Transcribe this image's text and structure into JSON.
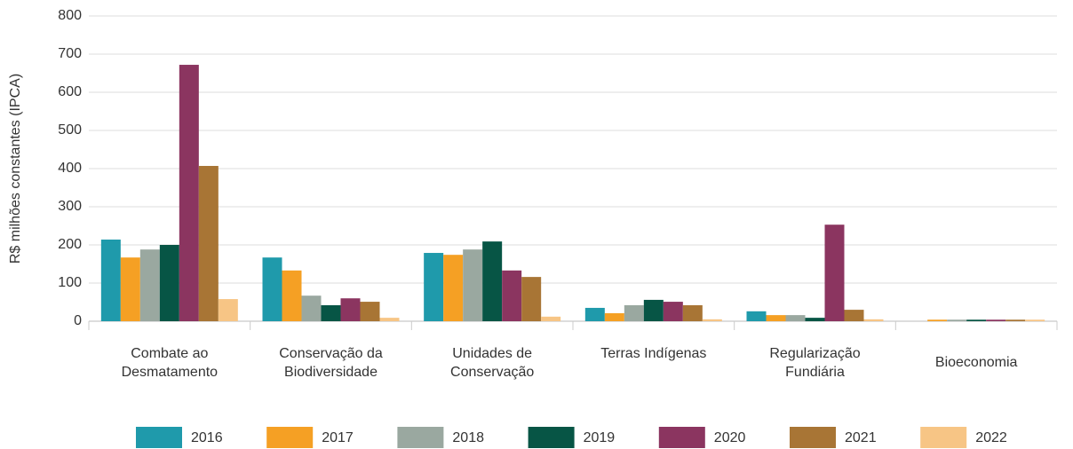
{
  "chart_data": {
    "type": "bar",
    "y_label": "R$ milhões constantes (IPCA)",
    "categories": [
      "Combate ao Desmatamento",
      "Conservação da Biodiversidade",
      "Unidades de Conservação",
      "Terras Indígenas",
      "Regularização Fundiária",
      "Bioeconomia"
    ],
    "series": [
      {
        "name": "2016",
        "color": "#1f9aab",
        "values": [
          214,
          167,
          179,
          35,
          26,
          0
        ]
      },
      {
        "name": "2017",
        "color": "#f5a024",
        "values": [
          167,
          133,
          174,
          21,
          16,
          4
        ]
      },
      {
        "name": "2018",
        "color": "#9aa8a0",
        "values": [
          188,
          67,
          188,
          42,
          16,
          4
        ]
      },
      {
        "name": "2019",
        "color": "#075545",
        "values": [
          200,
          42,
          209,
          56,
          9,
          4
        ]
      },
      {
        "name": "2020",
        "color": "#8b3560",
        "values": [
          672,
          60,
          133,
          51,
          253,
          4
        ]
      },
      {
        "name": "2021",
        "color": "#a87535",
        "values": [
          407,
          51,
          116,
          42,
          30,
          4
        ]
      },
      {
        "name": "2022",
        "color": "#f7c585",
        "values": [
          58,
          9,
          12,
          5,
          5,
          4
        ]
      }
    ],
    "ylim": [
      0,
      800
    ],
    "yticks": [
      0,
      100,
      200,
      300,
      400,
      500,
      600,
      700,
      800
    ],
    "grid": true
  }
}
